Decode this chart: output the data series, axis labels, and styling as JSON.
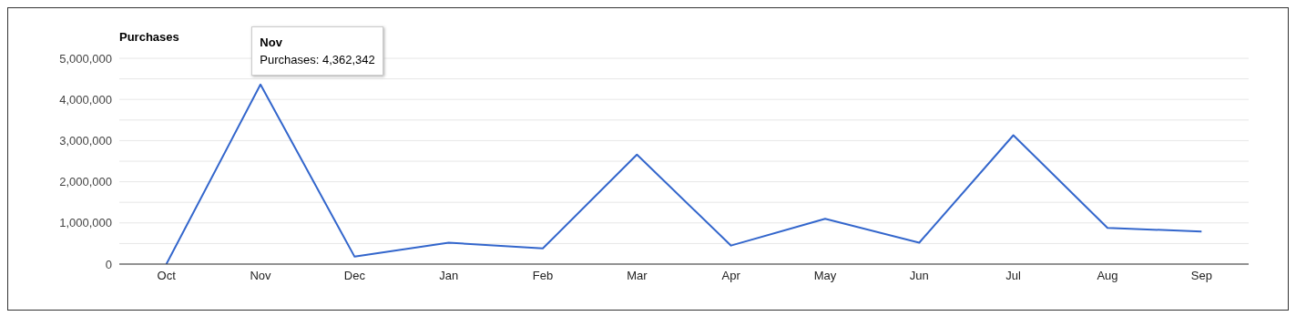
{
  "chart_data": {
    "type": "line",
    "ylabel": "Purchases",
    "categories": [
      "Oct",
      "Nov",
      "Dec",
      "Jan",
      "Feb",
      "Mar",
      "Apr",
      "May",
      "Jun",
      "Jul",
      "Aug",
      "Sep"
    ],
    "series": [
      {
        "color": "#3366cc",
        "values": [
          0,
          4362342,
          180000,
          520000,
          380000,
          2660000,
          450000,
          1100000,
          520000,
          3130000,
          880000,
          790000
        ]
      }
    ],
    "ylim": [
      0,
      5000000
    ],
    "yticks": [
      0,
      {
        "value": 500000,
        "label": null
      },
      {
        "value": 1000000,
        "label": "1,000,000"
      },
      {
        "value": 1500000,
        "label": null
      },
      {
        "value": 2000000,
        "label": "2,000,000"
      },
      {
        "value": 2500000,
        "label": null
      },
      {
        "value": 3000000,
        "label": "3,000,000"
      },
      {
        "value": 3500000,
        "label": null
      },
      {
        "value": 4000000,
        "label": "4,000,000"
      },
      {
        "value": 4500000,
        "label": null
      },
      {
        "value": 5000000,
        "label": "5,000,000"
      }
    ],
    "grid": "y",
    "marker": "none",
    "line_style": "solid",
    "annotations": [
      "Nov",
      "Purchases: 4,362,342"
    ]
  }
}
